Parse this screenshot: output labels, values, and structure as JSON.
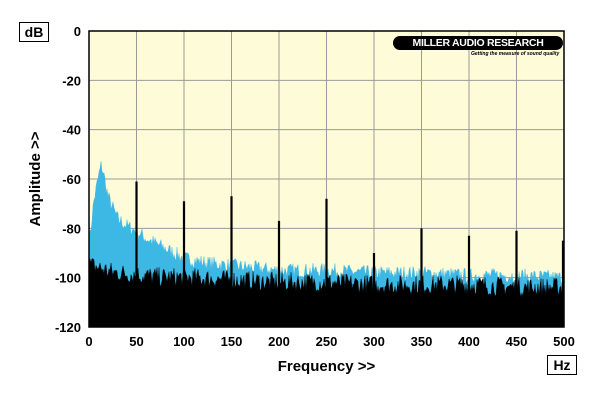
{
  "chart_data": {
    "type": "area",
    "title": "",
    "xlabel": "Frequency >>",
    "ylabel": "Amplitude >>",
    "x_unit": "Hz",
    "y_unit": "dB",
    "xlim": [
      0,
      500
    ],
    "ylim": [
      -120,
      0
    ],
    "x_ticks": [
      0,
      50,
      100,
      150,
      200,
      250,
      300,
      350,
      400,
      450,
      500
    ],
    "y_ticks": [
      0,
      -20,
      -40,
      -60,
      -80,
      -100,
      -120
    ],
    "grid": true,
    "legend": "none",
    "series": [
      {
        "color": "#3db7e4",
        "x": [
          0,
          5,
          10,
          13,
          16,
          20,
          30,
          40,
          50,
          60,
          75,
          90,
          100,
          125,
          150,
          175,
          200,
          250,
          300,
          350,
          400,
          450,
          500
        ],
        "values": [
          -88,
          -70,
          -60,
          -55,
          -60,
          -68,
          -77,
          -80,
          -82,
          -85,
          -88,
          -91,
          -93,
          -95,
          -96,
          -97,
          -98,
          -98,
          -99,
          -99,
          -100,
          -100,
          -101
        ]
      },
      {
        "color": "#000000",
        "x": [
          0,
          10,
          25,
          50,
          75,
          100,
          150,
          200,
          250,
          300,
          350,
          400,
          450,
          500
        ],
        "values": [
          -96,
          -97,
          -99,
          -100,
          -101,
          -101,
          -102,
          -103,
          -103,
          -104,
          -104,
          -104,
          -105,
          -105
        ]
      }
    ],
    "peaks": [
      {
        "x": 50,
        "y": -61
      },
      {
        "x": 100,
        "y": -69
      },
      {
        "x": 150,
        "y": -67
      },
      {
        "x": 200,
        "y": -77
      },
      {
        "x": 250,
        "y": -68
      },
      {
        "x": 300,
        "y": -90
      },
      {
        "x": 350,
        "y": -80
      },
      {
        "x": 400,
        "y": -83
      },
      {
        "x": 450,
        "y": -81
      },
      {
        "x": 500,
        "y": -85
      }
    ]
  },
  "branding": {
    "logo_text": "MILLER AUDIO RESEARCH",
    "tagline": "Getting the measure of sound quality"
  }
}
